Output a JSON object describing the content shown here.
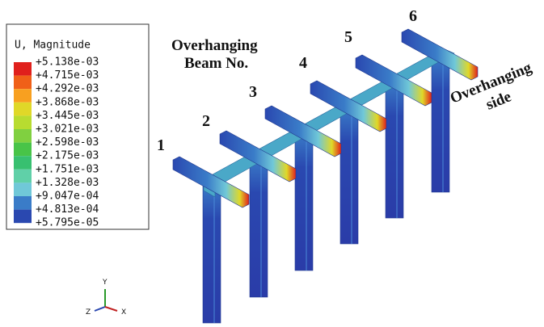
{
  "legend": {
    "title": "U, Magnitude",
    "labels": [
      "+5.138e-03",
      "+4.715e-03",
      "+4.292e-03",
      "+3.868e-03",
      "+3.445e-03",
      "+3.021e-03",
      "+2.598e-03",
      "+2.175e-03",
      "+1.751e-03",
      "+1.328e-03",
      "+9.047e-04",
      "+4.813e-04",
      "+5.795e-05"
    ],
    "swatch_colors": [
      "#e0201c",
      "#f06018",
      "#f8a020",
      "#e0d828",
      "#b8dc30",
      "#80d040",
      "#48c448",
      "#38c070",
      "#60d0a8",
      "#70c8d8",
      "#3a7cc8",
      "#2a48b0"
    ]
  },
  "annotations": {
    "beam_title": [
      "Overhanging",
      "Beam No."
    ],
    "side_title": [
      "Overhanging",
      "side"
    ],
    "beam_numbers": [
      "1",
      "2",
      "3",
      "4",
      "5",
      "6"
    ]
  },
  "triad": {
    "y": "Y",
    "z": "Z",
    "x": "X"
  }
}
